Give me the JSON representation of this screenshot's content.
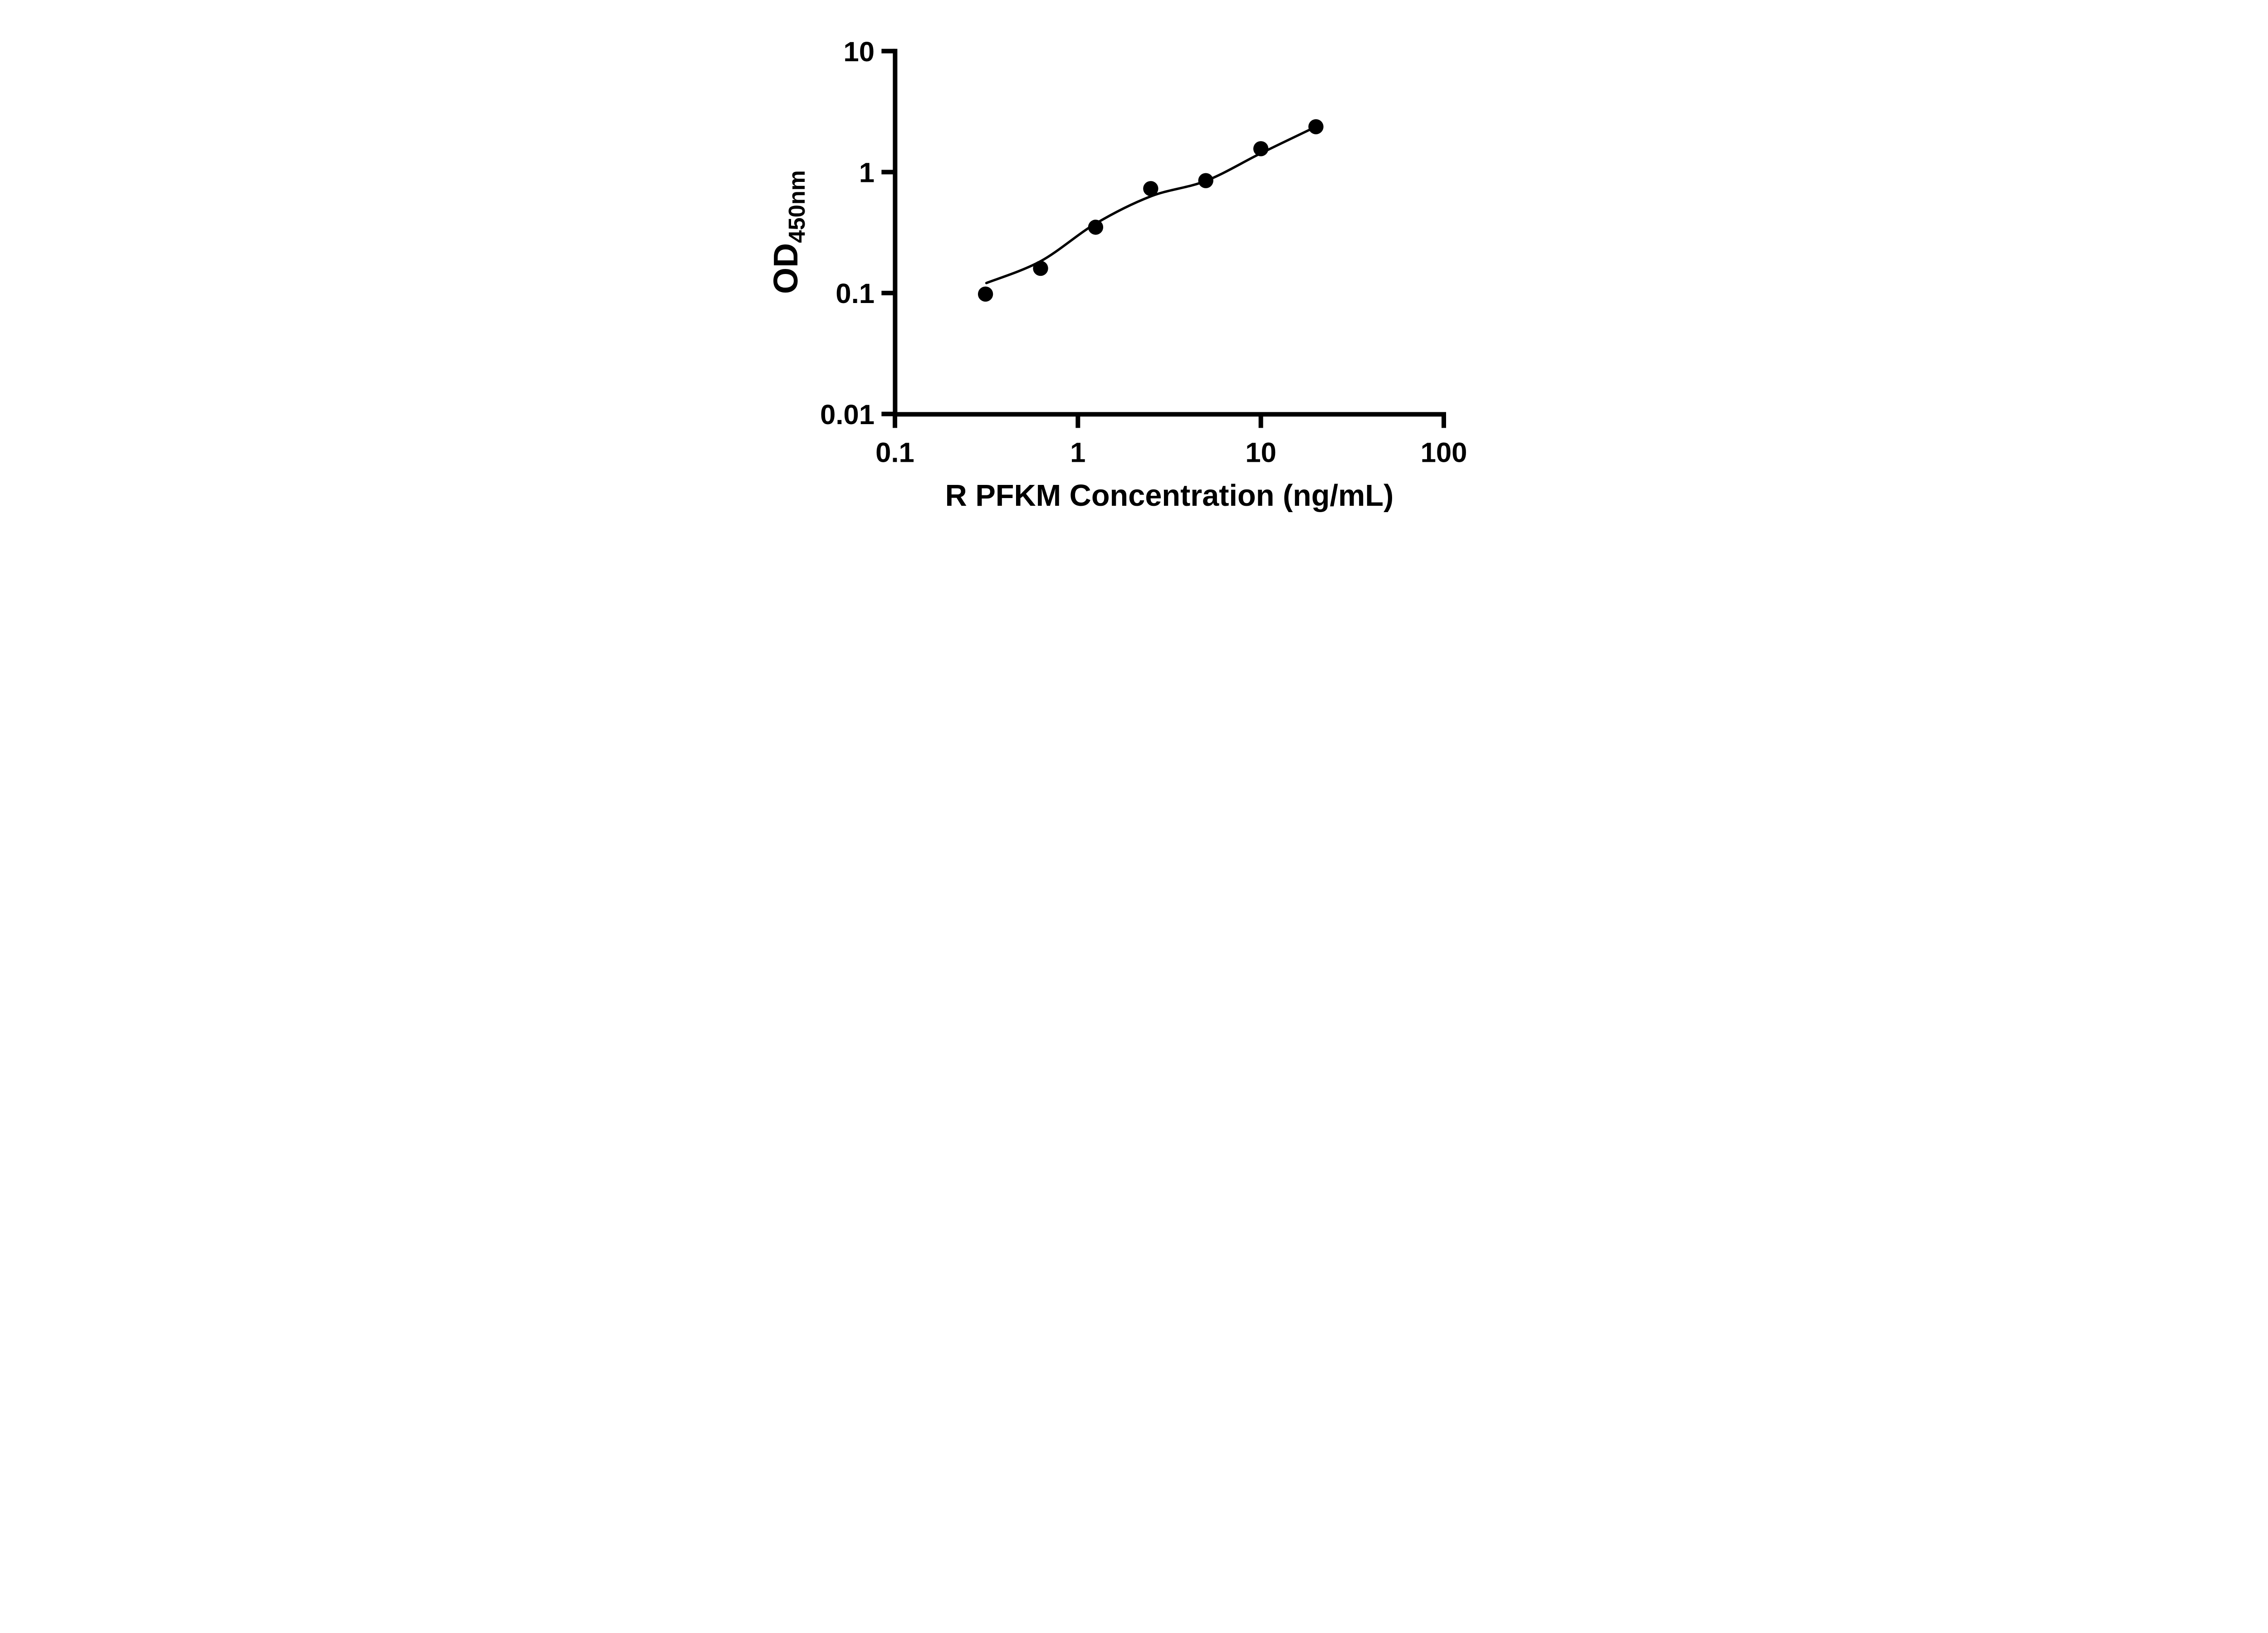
{
  "figure": {
    "background_color": "#ffffff",
    "ink_color": "#000000"
  },
  "chart_data": {
    "type": "scatter",
    "title": "",
    "xlabel": "R PFKM Concentration (ng/mL)",
    "ylabel_prefix": "OD",
    "ylabel_subscript": "450nm",
    "x_scale": "log10",
    "y_scale": "log10",
    "xlim": [
      0.1,
      100
    ],
    "ylim": [
      0.01,
      10
    ],
    "grid": false,
    "legend_position": "none",
    "x_ticks": [
      {
        "value": 0.1,
        "label": "0.1"
      },
      {
        "value": 1,
        "label": "1"
      },
      {
        "value": 10,
        "label": "10"
      },
      {
        "value": 100,
        "label": "100"
      }
    ],
    "y_ticks": [
      {
        "value": 10,
        "label": "10"
      },
      {
        "value": 1,
        "label": "1"
      },
      {
        "value": 0.1,
        "label": "0.1"
      },
      {
        "value": 0.01,
        "label": "0.01"
      }
    ],
    "series": [
      {
        "name": "R PFKM standard curve points",
        "marker": "filled-circle",
        "color": "#000000",
        "x": [
          0.3125,
          0.625,
          1.25,
          2.5,
          5,
          10,
          20
        ],
        "y": [
          0.098,
          0.16,
          0.35,
          0.73,
          0.85,
          1.56,
          2.37
        ]
      }
    ],
    "trendline": {
      "name": "fitted standard curve",
      "type": "smooth",
      "color": "#000000",
      "x": [
        0.316,
        0.625,
        1.25,
        2.5,
        5,
        10,
        20
      ],
      "y": [
        0.121,
        0.183,
        0.375,
        0.63,
        0.845,
        1.43,
        2.37
      ]
    }
  }
}
